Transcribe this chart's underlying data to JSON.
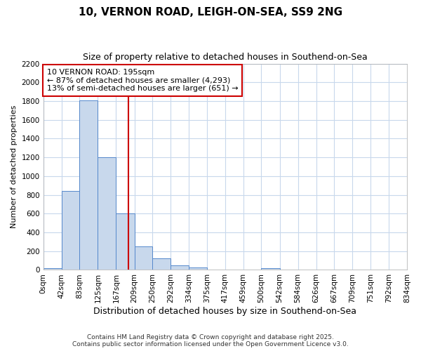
{
  "title_line1": "10, VERNON ROAD, LEIGH-ON-SEA, SS9 2NG",
  "title_line2": "Size of property relative to detached houses in Southend-on-Sea",
  "xlabel": "Distribution of detached houses by size in Southend-on-Sea",
  "ylabel": "Number of detached properties",
  "bin_labels": [
    "0sqm",
    "42sqm",
    "83sqm",
    "125sqm",
    "167sqm",
    "209sqm",
    "250sqm",
    "292sqm",
    "334sqm",
    "375sqm",
    "417sqm",
    "459sqm",
    "500sqm",
    "542sqm",
    "584sqm",
    "626sqm",
    "667sqm",
    "709sqm",
    "751sqm",
    "792sqm",
    "834sqm"
  ],
  "bin_edges": [
    0,
    42,
    83,
    125,
    167,
    209,
    250,
    292,
    334,
    375,
    417,
    459,
    500,
    542,
    584,
    626,
    667,
    709,
    751,
    792,
    834
  ],
  "bar_values": [
    20,
    840,
    1810,
    1200,
    600,
    250,
    125,
    45,
    25,
    0,
    0,
    0,
    20,
    0,
    0,
    0,
    0,
    0,
    0,
    0
  ],
  "bar_color": "#c8d8ec",
  "bar_edge_color": "#5588cc",
  "vline_x": 195,
  "vline_color": "#cc0000",
  "annotation_box_text": "10 VERNON ROAD: 195sqm\n← 87% of detached houses are smaller (4,293)\n13% of semi-detached houses are larger (651) →",
  "ylim": [
    0,
    2200
  ],
  "yticks": [
    0,
    200,
    400,
    600,
    800,
    1000,
    1200,
    1400,
    1600,
    1800,
    2000,
    2200
  ],
  "footer_line1": "Contains HM Land Registry data © Crown copyright and database right 2025.",
  "footer_line2": "Contains public sector information licensed under the Open Government Licence v3.0.",
  "background_color": "#ffffff",
  "plot_bg_color": "#ffffff",
  "grid_color": "#c8d8ec",
  "title_fontsize": 11,
  "subtitle_fontsize": 9,
  "ylabel_fontsize": 8,
  "xlabel_fontsize": 9,
  "tick_fontsize": 7.5,
  "annot_fontsize": 8
}
